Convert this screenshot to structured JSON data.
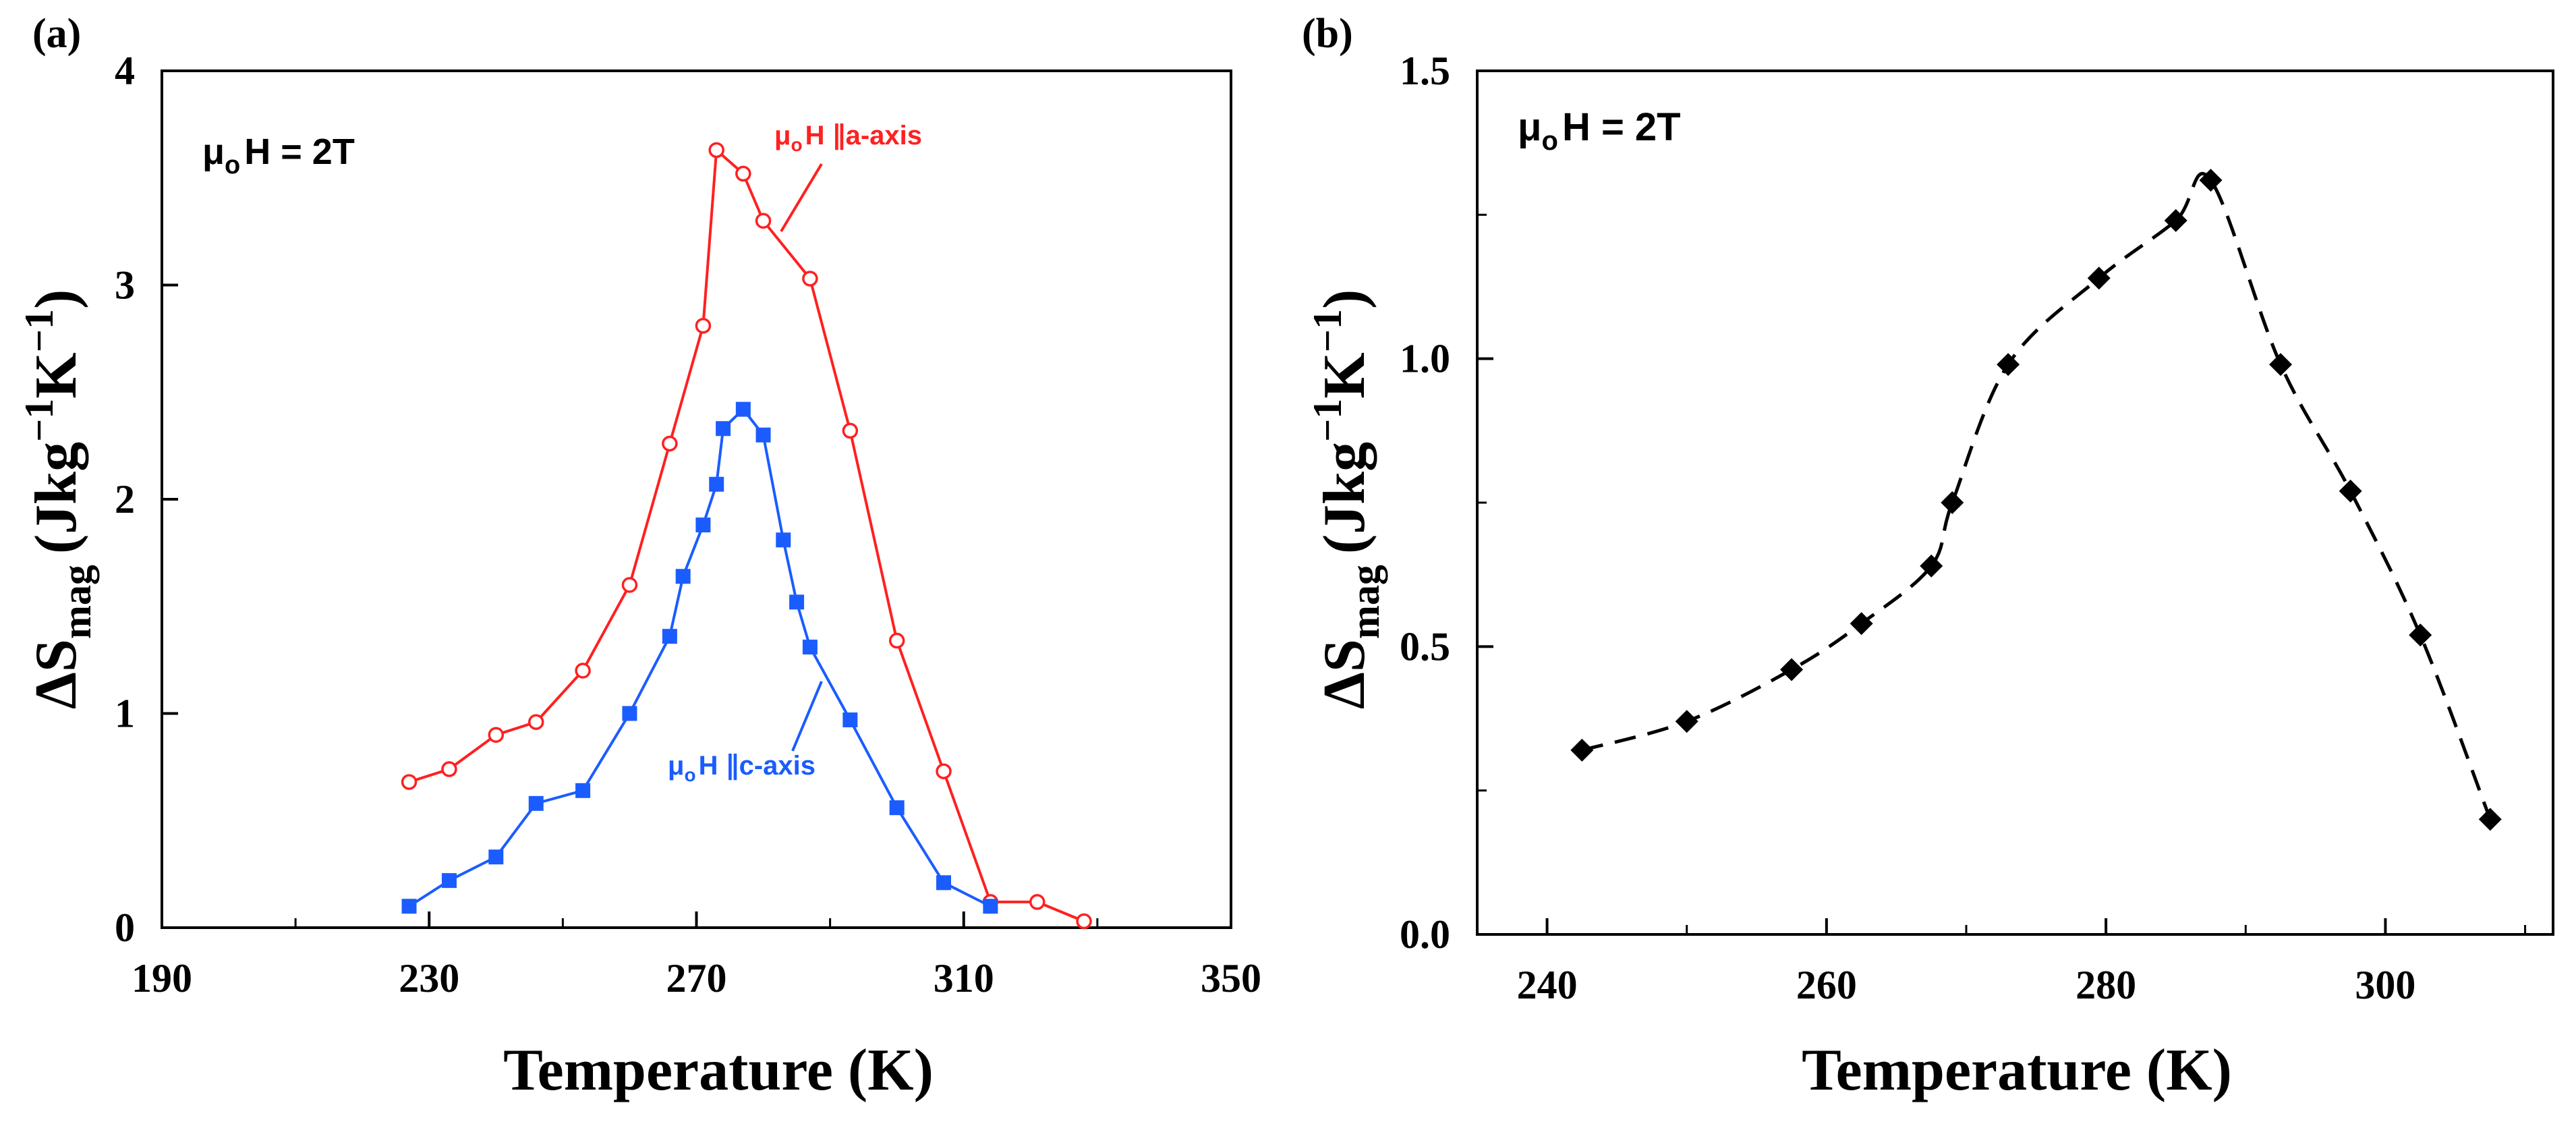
{
  "chart_data": [
    {
      "panel_label": "(a)",
      "type": "line",
      "xlabel": "Temperature (K)",
      "ylabel": "ΔS",
      "ylabel_sub": "mag",
      "ylabel_units": "(Jkg",
      "ylabel_exp1": "−1",
      "ylabel_mid": "K",
      "ylabel_exp2": "−1",
      "ylabel_close": ")",
      "xlim": [
        190,
        350
      ],
      "ylim": [
        0,
        4
      ],
      "xticks": [
        190,
        230,
        270,
        310,
        350
      ],
      "xtick_labels": [
        "190",
        "230",
        "270",
        "310",
        "350"
      ],
      "xminor": [
        210,
        250,
        290,
        330
      ],
      "yticks": [
        0,
        1,
        2,
        3,
        4
      ],
      "ytick_labels": [
        "0",
        "1",
        "2",
        "3",
        "4"
      ],
      "field": {
        "prefix": "μ",
        "sub": "o",
        "text": "H = 2T"
      },
      "series": [
        {
          "name": "μoH ∥a-axis",
          "label_prefix": "μ",
          "label_sub": "o",
          "label_text": "H ∥a-axis",
          "color": "#ff2020",
          "marker": "open-circle",
          "x": [
            227,
            233,
            240,
            246,
            253,
            260,
            266,
            271,
            273,
            277,
            280,
            287,
            293,
            300,
            307,
            314,
            321,
            328
          ],
          "y": [
            0.68,
            0.74,
            0.9,
            0.96,
            1.2,
            1.6,
            2.26,
            2.81,
            3.63,
            3.52,
            3.3,
            3.03,
            2.32,
            1.34,
            0.73,
            0.12,
            0.12,
            0.03
          ]
        },
        {
          "name": "μoH ∥c-axis",
          "label_prefix": "μ",
          "label_sub": "o",
          "label_text": "H ∥c-axis",
          "color": "#1a5cff",
          "marker": "filled-square",
          "x": [
            227,
            233,
            240,
            246,
            253,
            260,
            266,
            268,
            271,
            273,
            274,
            277,
            280,
            283,
            285,
            287,
            293,
            300,
            307,
            314
          ],
          "y": [
            0.1,
            0.22,
            0.33,
            0.58,
            0.64,
            1.0,
            1.36,
            1.64,
            1.88,
            2.07,
            2.33,
            2.42,
            2.3,
            1.81,
            1.52,
            1.31,
            0.97,
            0.56,
            0.21,
            0.1
          ]
        }
      ]
    },
    {
      "panel_label": "(b)",
      "type": "scatter",
      "xlabel": "Temperature (K)",
      "ylabel": "ΔS",
      "ylabel_sub": "mag",
      "ylabel_units": "(Jkg",
      "ylabel_exp1": "−1",
      "ylabel_mid": "K",
      "ylabel_exp2": "−1",
      "ylabel_close": ")",
      "xlim": [
        235,
        312
      ],
      "ylim": [
        0,
        1.5
      ],
      "xticks": [
        240,
        260,
        280,
        300
      ],
      "xtick_labels": [
        "240",
        "260",
        "280",
        "300"
      ],
      "xminor": [
        250,
        270,
        290,
        310
      ],
      "yticks": [
        0,
        0.5,
        1.0,
        1.5
      ],
      "ytick_labels": [
        "0.0",
        "0.5",
        "1.0",
        "1.5"
      ],
      "yminor": [
        0.25,
        0.75,
        1.25
      ],
      "field": {
        "prefix": "μ",
        "sub": "o",
        "text": "H = 2T"
      },
      "series": [
        {
          "name": "ΔSmag (dashed fit)",
          "color": "#000000",
          "marker": "filled-diamond",
          "x": [
            242.5,
            250,
            257.5,
            262.5,
            267.5,
            269,
            273,
            279.5,
            285,
            287.5,
            292.5,
            297.5,
            302.5,
            307.5
          ],
          "y": [
            0.32,
            0.37,
            0.46,
            0.54,
            0.64,
            0.75,
            0.99,
            1.14,
            1.24,
            1.31,
            0.99,
            0.77,
            0.52,
            0.2
          ]
        }
      ]
    }
  ]
}
